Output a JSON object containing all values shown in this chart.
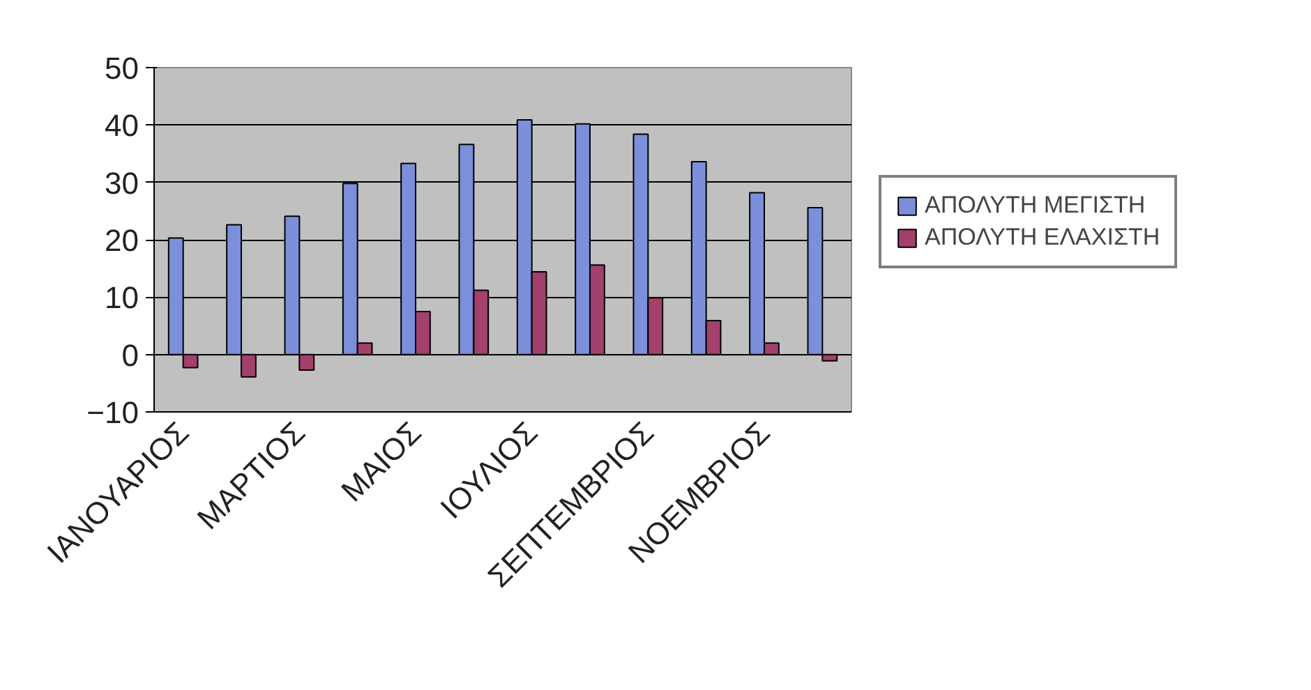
{
  "chart_data": {
    "type": "bar",
    "categories": [
      "ΙΑΝΟΥΑΡΙΟΣ",
      null,
      "ΜΑΡΤΙΟΣ",
      null,
      "ΜΑΙΟΣ",
      null,
      "ΙΟΥΛΙΟΣ",
      null,
      "ΣΕΠΤΕΜΒΡΙΟΣ",
      null,
      "ΝΟΕΜΒΡΙΟΣ",
      null
    ],
    "series": [
      {
        "name": "ΑΠΟΛΥΤΗ ΜΕΓΙΣΤΗ",
        "color": "#7b8fdb",
        "values": [
          20.3,
          22.6,
          24.1,
          29.8,
          33.3,
          36.6,
          40.9,
          40.2,
          38.4,
          33.6,
          28.2,
          25.6
        ]
      },
      {
        "name": "ΑΠΟΛΥΤΗ ΕΛΑΧΙΣΤΗ",
        "color": "#a3406b",
        "values": [
          -2.3,
          -3.9,
          -2.7,
          2.0,
          7.5,
          11.2,
          14.4,
          15.6,
          9.9,
          5.9,
          2.0,
          -1.1
        ]
      }
    ],
    "ylim": [
      -10,
      50
    ],
    "yticks": [
      -10,
      0,
      10,
      20,
      30,
      40,
      50
    ],
    "grid": "y",
    "legend": "right"
  }
}
